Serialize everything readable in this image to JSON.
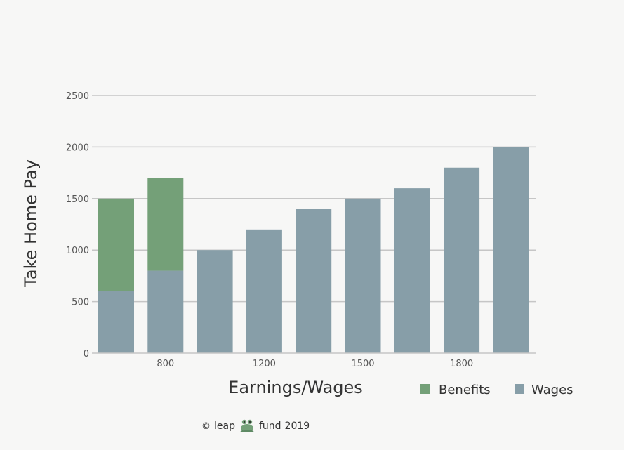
{
  "chart_data": {
    "type": "bar",
    "stacked": true,
    "categories": [
      "",
      "800",
      "",
      "1200",
      "",
      "1500",
      "",
      "1800",
      ""
    ],
    "series": [
      {
        "name": "Wages",
        "color": "#879ea8",
        "values": [
          600,
          800,
          1000,
          1200,
          1400,
          1500,
          1600,
          1800,
          2000
        ]
      },
      {
        "name": "Benefits",
        "color": "#74a078",
        "values": [
          900,
          900,
          0,
          0,
          0,
          0,
          0,
          0,
          0
        ]
      }
    ],
    "yticks": [
      "0",
      "500",
      "1000",
      "1500",
      "2000",
      "2500"
    ],
    "ylim": [
      0,
      2500
    ],
    "xlabel": "Earnings/Wages",
    "ylabel": "Take Home Pay",
    "grid": true,
    "legend": {
      "placement": "bottom-right",
      "items": [
        "Benefits",
        "Wages"
      ]
    }
  },
  "credit": {
    "copyright": "©",
    "brand_left": "leap",
    "logo_icon": "frog-icon",
    "brand_right": "fund",
    "year": "2019"
  }
}
